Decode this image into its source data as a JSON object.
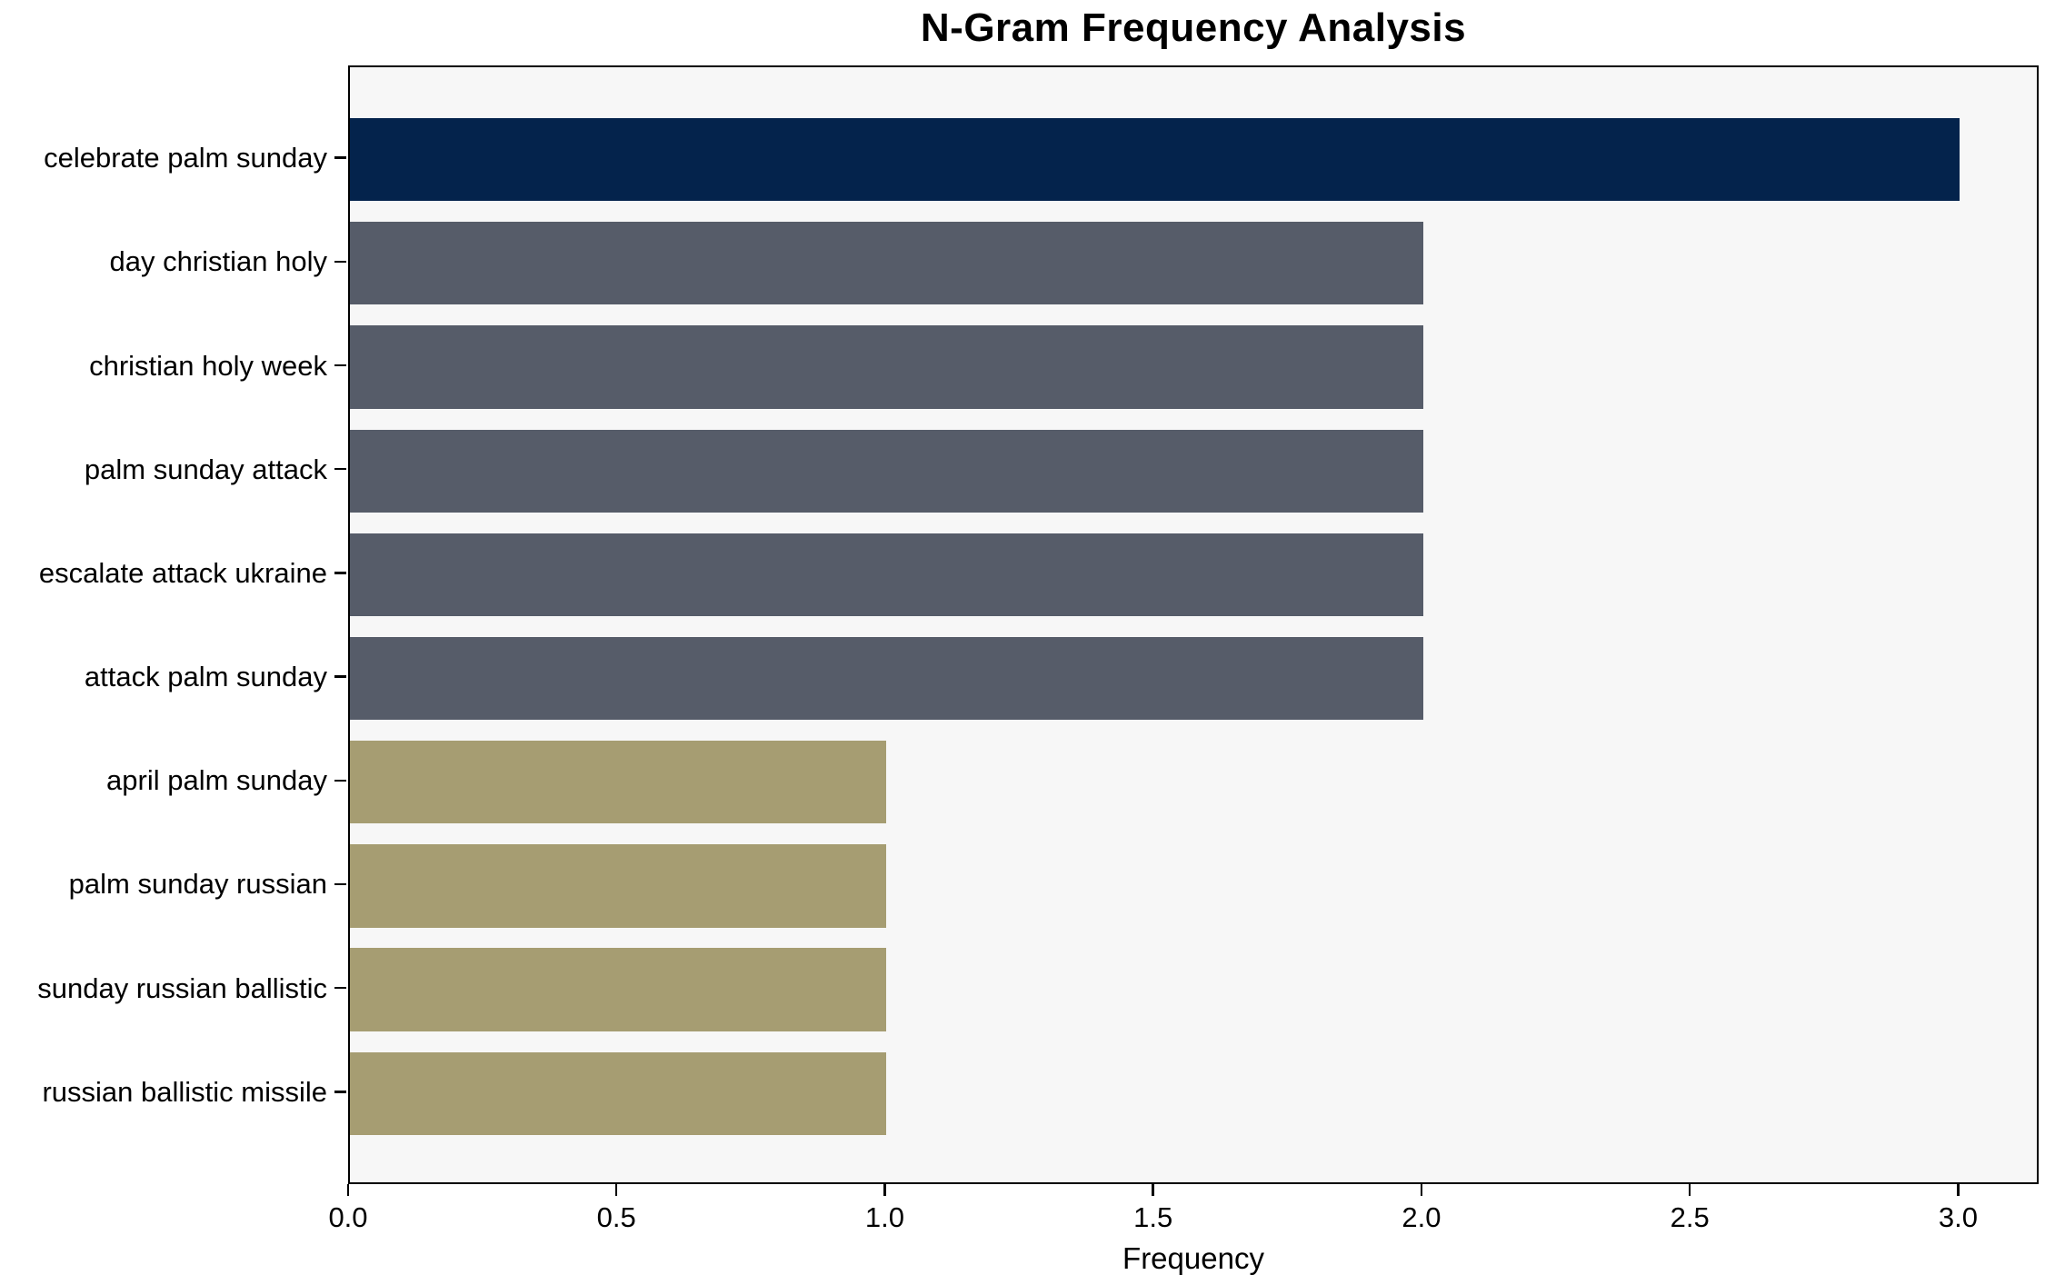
{
  "chart_data": {
    "type": "bar",
    "orientation": "horizontal",
    "title": "N-Gram Frequency Analysis",
    "xlabel": "Frequency",
    "ylabel": "",
    "categories": [
      "celebrate palm sunday",
      "day christian holy",
      "christian holy week",
      "palm sunday attack",
      "escalate attack ukraine",
      "attack palm sunday",
      "april palm sunday",
      "palm sunday russian",
      "sunday russian ballistic",
      "russian ballistic missile"
    ],
    "values": [
      3,
      2,
      2,
      2,
      2,
      2,
      1,
      1,
      1,
      1
    ],
    "bar_colors": [
      "#04234c",
      "#565c69",
      "#565c69",
      "#565c69",
      "#565c69",
      "#565c69",
      "#a69d72",
      "#a69d72",
      "#a69d72",
      "#a69d72"
    ],
    "xlim": [
      0,
      3.15
    ],
    "xtick_labels": [
      "0.0",
      "0.5",
      "1.0",
      "1.5",
      "2.0",
      "2.5",
      "3.0"
    ],
    "xtick_values": [
      0.0,
      0.5,
      1.0,
      1.5,
      2.0,
      2.5,
      3.0
    ],
    "grid": false,
    "legend": "none",
    "plot_background": "#f7f7f7",
    "figure_background": "#ffffff",
    "spine_color": "#000000",
    "bar_height_fraction": 0.8
  }
}
